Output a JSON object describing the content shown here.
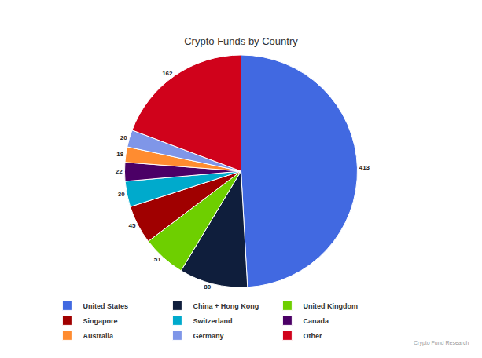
{
  "chart_data": {
    "type": "pie",
    "title": "Crypto Funds by Country",
    "categories": [
      "United States",
      "China + Hong Kong",
      "United Kingdom",
      "Singapore",
      "Switzerland",
      "Canada",
      "Australia",
      "Germany",
      "Other"
    ],
    "values": [
      413,
      80,
      51,
      45,
      30,
      22,
      18,
      20,
      162
    ],
    "colors": [
      "#4169e1",
      "#0f1e3c",
      "#6ecf00",
      "#a00000",
      "#00aacc",
      "#4b0066",
      "#ff8c30",
      "#7f96e8",
      "#d0021b"
    ],
    "data_labels": true,
    "legend": "bottom",
    "source": "Crypto Fund Research"
  }
}
